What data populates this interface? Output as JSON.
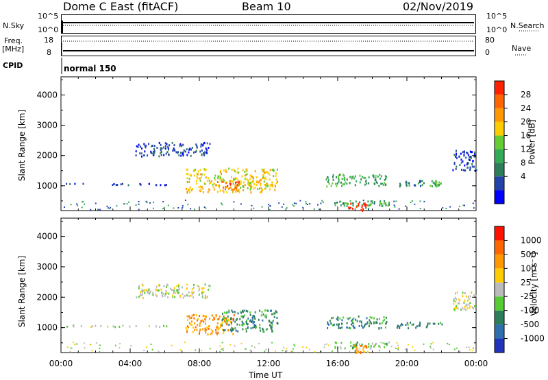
{
  "header": {
    "radar": "Dome C East (fitACF)",
    "beam": "Beam 10",
    "date": "02/Nov/2019"
  },
  "status_panel": {
    "nsky_label": "N.Sky",
    "nsky_ticks": [
      "10^5",
      "10^0"
    ],
    "nsearch_label": "N.Search",
    "nsearch_ticks": [
      "10^5",
      "10^0"
    ],
    "freq_label_line1": "Freq.",
    "freq_label_line2": "[MHz]",
    "freq_ticks": [
      "18",
      "8"
    ],
    "nave_label": "Nave",
    "nave_ticks": [
      "80",
      "0"
    ],
    "cpid_label": "CPID",
    "cpid_value": "normal 150"
  },
  "chart_data": [
    {
      "type": "heatmap",
      "name": "power",
      "ylabel": "Slant Range [km]",
      "yticks": [
        "4000",
        "3000",
        "2000",
        "1000"
      ],
      "ylim": [
        180,
        4600
      ],
      "xlim_hours": [
        0,
        24
      ],
      "colorbar": {
        "label": "Power [dB]",
        "ticks": [
          "28",
          "24",
          "20",
          "16",
          "12",
          "8",
          "4"
        ],
        "colors": [
          "#0000ff",
          "#2244aa",
          "#2e7d5a",
          "#33aa55",
          "#66cc33",
          "#ffcc00",
          "#ff9900",
          "#ff6600",
          "#ff2200"
        ]
      },
      "regions": [
        {
          "t0": 4.3,
          "t1": 8.6,
          "r0": 2000,
          "r1": 2450,
          "level": 1
        },
        {
          "t0": 0.0,
          "t1": 6.3,
          "r0": 1050,
          "r1": 1100,
          "level": 1
        },
        {
          "t0": 7.2,
          "t1": 12.5,
          "r0": 800,
          "r1": 1600,
          "level": 5
        },
        {
          "t0": 9.0,
          "t1": 10.3,
          "r0": 850,
          "r1": 1200,
          "level": 7
        },
        {
          "t0": 15.3,
          "t1": 18.8,
          "r0": 1000,
          "r1": 1400,
          "level": 3
        },
        {
          "t0": 15.8,
          "t1": 19.0,
          "r0": 350,
          "r1": 550,
          "level": 3
        },
        {
          "t0": 16.6,
          "t1": 17.7,
          "r0": 200,
          "r1": 450,
          "level": 8
        },
        {
          "t0": 19.4,
          "t1": 21.0,
          "r0": 1000,
          "r1": 1200,
          "level": 2
        },
        {
          "t0": 21.3,
          "t1": 22.0,
          "r0": 1000,
          "r1": 1200,
          "level": 3
        },
        {
          "t0": 22.6,
          "t1": 24.0,
          "r0": 1500,
          "r1": 2200,
          "level": 1
        }
      ]
    },
    {
      "type": "heatmap",
      "name": "velocity",
      "ylabel": "Slant Range [km]",
      "yticks": [
        "4000",
        "3000",
        "2000",
        "1000"
      ],
      "ylim": [
        180,
        4600
      ],
      "xlim_hours": [
        0,
        24
      ],
      "xticks": [
        "00:00",
        "04:00",
        "08:00",
        "12:00",
        "16:00",
        "20:00",
        "00:00"
      ],
      "xlabel": "Time UT",
      "colorbar": {
        "label": "Velocity [m s⁻¹]",
        "ticks": [
          "1000",
          "500",
          "100",
          "25",
          "-25",
          "-100",
          "-500",
          "-1000"
        ],
        "colors": [
          "#2233bb",
          "#2e6fb0",
          "#2e7d5a",
          "#55cc33",
          "#bbbbbb",
          "#ffcc00",
          "#ff9900",
          "#ff6600",
          "#ff1100"
        ]
      },
      "regions": [
        {
          "t0": 4.3,
          "t1": 8.6,
          "r0": 2000,
          "r1": 2450,
          "level": 4
        },
        {
          "t0": 0.0,
          "t1": 6.3,
          "r0": 1050,
          "r1": 1100,
          "level": 4
        },
        {
          "t0": 7.2,
          "t1": 10.0,
          "r0": 800,
          "r1": 1450,
          "level": 6
        },
        {
          "t0": 9.2,
          "t1": 12.5,
          "r0": 900,
          "r1": 1600,
          "level": 2
        },
        {
          "t0": 15.3,
          "t1": 19.0,
          "r0": 1000,
          "r1": 1400,
          "level": 2
        },
        {
          "t0": 15.8,
          "t1": 19.0,
          "r0": 350,
          "r1": 550,
          "level": 3
        },
        {
          "t0": 16.8,
          "t1": 17.7,
          "r0": 200,
          "r1": 450,
          "level": 6
        },
        {
          "t0": 19.4,
          "t1": 22.0,
          "r0": 1000,
          "r1": 1200,
          "level": 2
        },
        {
          "t0": 22.6,
          "t1": 24.0,
          "r0": 1600,
          "r1": 2200,
          "level": 4
        }
      ]
    }
  ]
}
